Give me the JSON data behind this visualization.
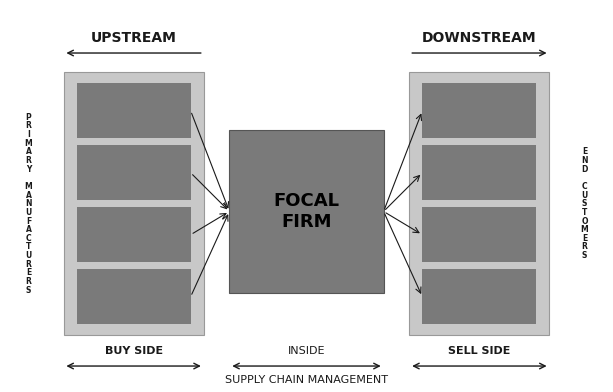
{
  "bg_color": "#ffffff",
  "box_outer_color": "#c8c8c8",
  "box_inner_color": "#7a7a7a",
  "focal_box_color": "#7a7a7a",
  "arrow_color": "#1a1a1a",
  "text_color": "#1a1a1a",
  "upstream_label": "UPSTREAM",
  "downstream_label": "DOWNSTREAM",
  "focal_text": "FOCAL\nFIRM",
  "buy_side_label": "BUY SIDE",
  "inside_label": "INSIDE",
  "sell_side_label": "SELL SIDE",
  "scm_label": "SUPPLY CHAIN MANAGEMENT",
  "left_vert_chars": [
    "P",
    "R",
    "I",
    "M",
    "A",
    "R",
    "Y",
    " ",
    "M",
    "A",
    "N",
    "U",
    "F",
    "A",
    "C",
    "T",
    "U",
    "R",
    "E",
    "R",
    "S"
  ],
  "right_vert_chars": [
    "E",
    "N",
    "D",
    " ",
    "C",
    "U",
    "S",
    "T",
    "O",
    "M",
    "E",
    "R",
    "S"
  ]
}
